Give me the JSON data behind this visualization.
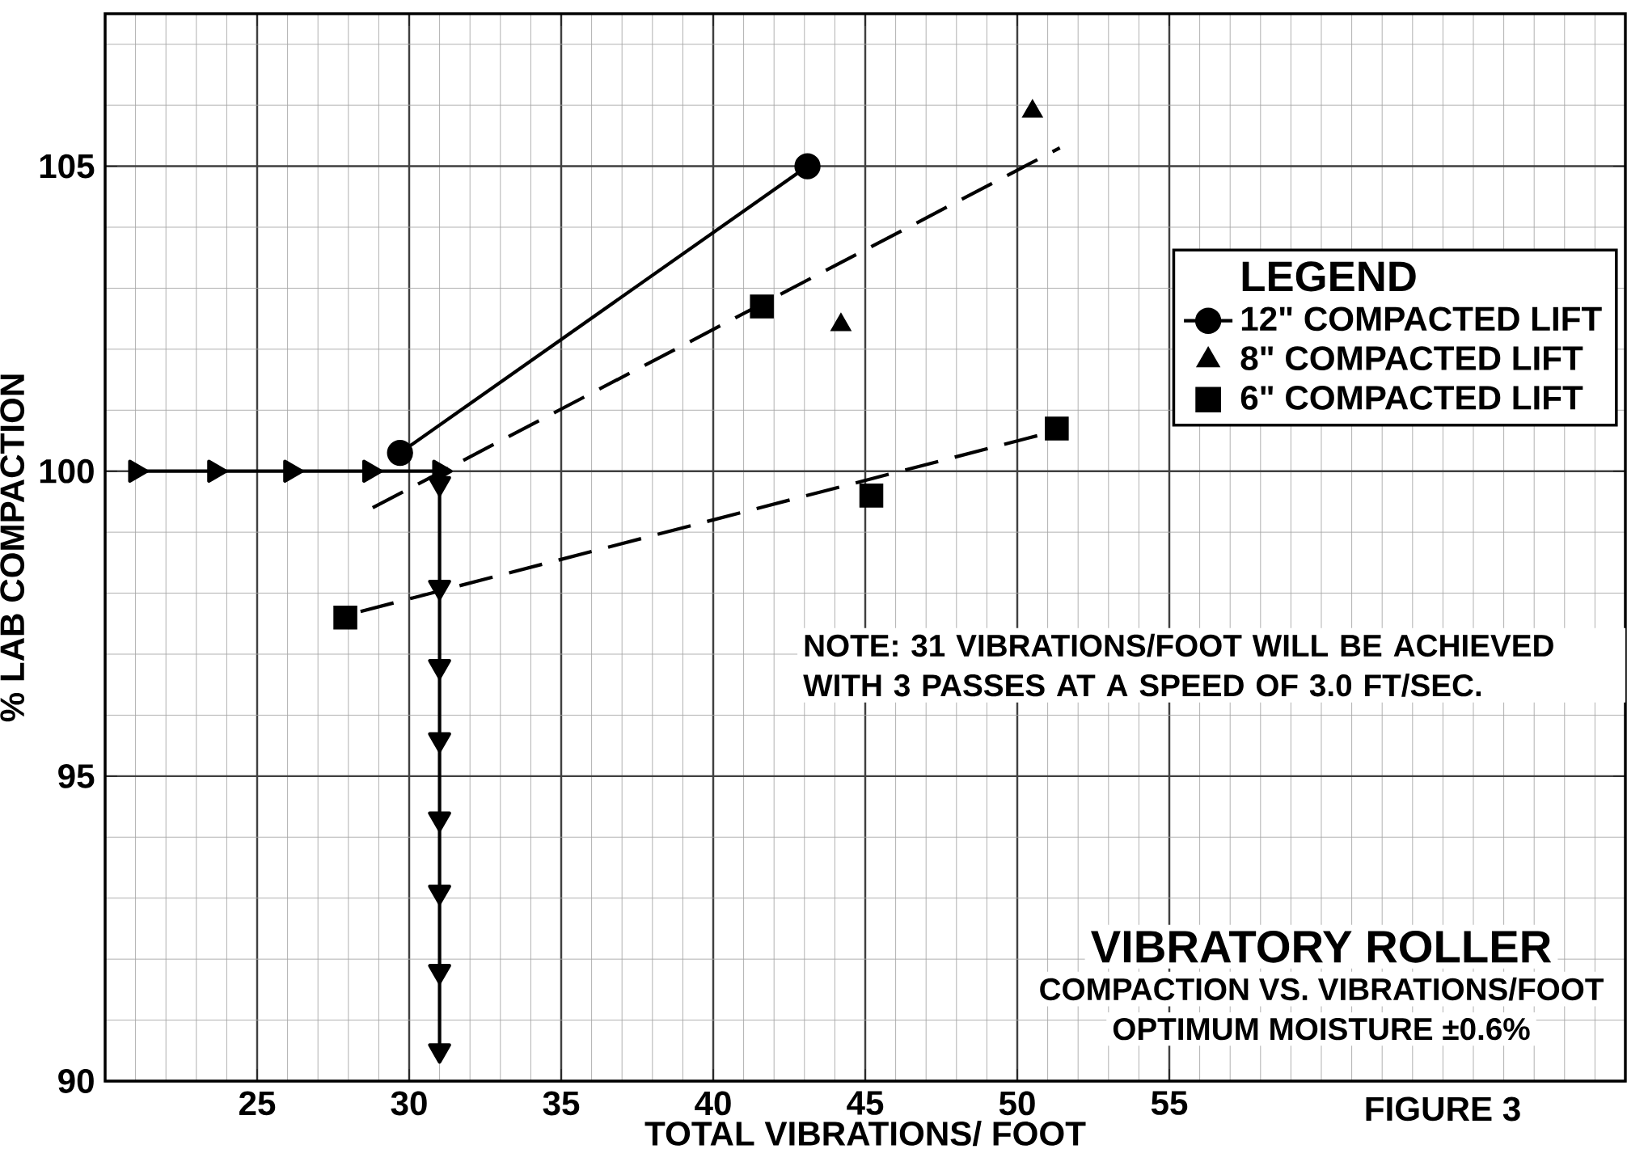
{
  "chart_data": {
    "type": "scatter",
    "title": "VIBRATORY ROLLER",
    "subtitle": "COMPACTION VS. VIBRATIONS/FOOT",
    "xlabel": "TOTAL VIBRATIONS/ FOOT",
    "ylabel": "% LAB COMPACTION",
    "legend_title": "LEGEND",
    "annotations": [
      "OPTIMUM MOISTURE ±0.6%",
      "NOTE: 31 VIBRATIONS/FOOT WILL BE ACHIEVED WITH 3 PASSES AT A SPEED OF 3.0 FT/SEC.",
      "FIGURE 3"
    ],
    "xlim": [
      20,
      70
    ],
    "ylim": [
      90,
      107.5
    ],
    "xticks": [
      25,
      30,
      35,
      40,
      45,
      50,
      55
    ],
    "yticks": [
      90,
      95,
      100,
      105
    ],
    "grid": true,
    "legend": "right",
    "series": [
      {
        "name": "12\" COMPACTED LIFT",
        "type": "line",
        "marker": "circle",
        "line_style": "solid",
        "color": "#000000",
        "x": [
          29.7,
          43.1
        ],
        "values": [
          100.3,
          105.0
        ]
      },
      {
        "name": "8\" COMPACTED LIFT",
        "marker": "triangle",
        "color": "#000000",
        "x": [
          44.2,
          50.5
        ],
        "values": [
          102.4,
          105.9
        ]
      },
      {
        "name": "6\" COMPACTED LIFT",
        "marker": "square",
        "color": "#000000",
        "x": [
          27.9,
          41.6,
          45.2,
          51.3
        ],
        "values": [
          97.6,
          102.7,
          99.6,
          100.7
        ]
      },
      {
        "type": "line",
        "line_style": "dashed",
        "color": "#000000",
        "x": [
          28.8,
          51.4
        ],
        "values": [
          99.4,
          105.3
        ]
      },
      {
        "type": "line",
        "line_style": "dashed",
        "color": "#000000",
        "x": [
          28.4,
          50.8
        ],
        "values": [
          97.7,
          100.6
        ]
      },
      {
        "type": "line",
        "marker": "triangle",
        "line_style": "solid",
        "color": "#000000",
        "x": [
          21.0,
          23.6,
          26.1,
          28.7,
          31.0
        ],
        "values": [
          100,
          100,
          100,
          100,
          100
        ]
      },
      {
        "type": "line",
        "marker": "triangle",
        "line_style": "solid",
        "color": "#000000",
        "x": [
          31.0,
          31.0,
          31.0,
          31.0,
          31.0,
          31.0,
          31.0,
          31.0
        ],
        "values": [
          99.8,
          98.1,
          96.8,
          95.6,
          94.3,
          93.1,
          91.8,
          90.5
        ]
      }
    ]
  }
}
